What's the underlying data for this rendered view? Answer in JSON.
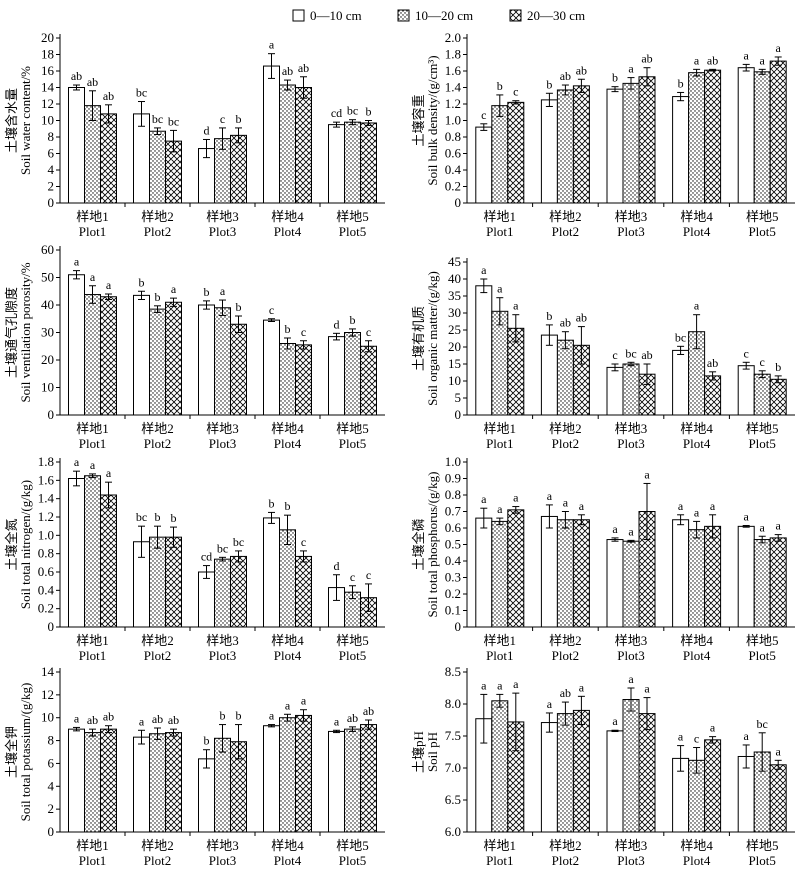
{
  "legend": [
    {
      "label": "0—10 cm",
      "pattern": "empty"
    },
    {
      "label": "10—20 cm",
      "pattern": "dots"
    },
    {
      "label": "20—30 cm",
      "pattern": "crosshatch"
    }
  ],
  "chart_data": [
    {
      "type": "bar",
      "ylabel_cn": "土壤含水量",
      "ylabel_en": "Soil water content/%",
      "ylim": [
        0,
        20
      ],
      "yticks": [
        "0",
        "2",
        "4",
        "6",
        "8",
        "10",
        "12",
        "14",
        "16",
        "18",
        "20"
      ],
      "categories_cn": [
        "样地1",
        "样地2",
        "样地3",
        "样地4",
        "样地5"
      ],
      "categories_en": [
        "Plot1",
        "Plot2",
        "Plot3",
        "Plot4",
        "Plot5"
      ],
      "series": [
        {
          "name": "0—10 cm",
          "values": [
            14.0,
            10.8,
            6.6,
            16.6,
            9.5
          ],
          "errors": [
            0.3,
            1.5,
            1.1,
            1.5,
            0.3
          ],
          "labels": [
            "ab",
            "bc",
            "d",
            "a",
            "cd"
          ]
        },
        {
          "name": "10—20 cm",
          "values": [
            11.8,
            8.7,
            7.8,
            14.3,
            9.8
          ],
          "errors": [
            1.8,
            0.4,
            1.3,
            0.6,
            0.3
          ],
          "labels": [
            "ab",
            "bc",
            "c",
            "ab",
            "bc"
          ]
        },
        {
          "name": "20—30 cm",
          "values": [
            10.8,
            7.5,
            8.2,
            14.0,
            9.7
          ],
          "errors": [
            1.1,
            1.3,
            0.9,
            1.3,
            0.3
          ],
          "labels": [
            "ab",
            "bc",
            "b",
            "ab",
            "b"
          ]
        }
      ]
    },
    {
      "type": "bar",
      "ylabel_cn": "土壤容重",
      "ylabel_en": "Soil bulk density/(g/cm³)",
      "ylim": [
        0,
        2.0
      ],
      "yticks": [
        "0",
        "0.2",
        "0.4",
        "0.6",
        "0.8",
        "1.0",
        "1.2",
        "1.4",
        "1.6",
        "1.8",
        "2.0"
      ],
      "categories_cn": [
        "样地1",
        "样地2",
        "样地3",
        "样地4",
        "样地5"
      ],
      "categories_en": [
        "Plot1",
        "Plot2",
        "Plot3",
        "Plot4",
        "Plot5"
      ],
      "series": [
        {
          "name": "0—10 cm",
          "values": [
            0.92,
            1.25,
            1.38,
            1.29,
            1.64
          ],
          "errors": [
            0.04,
            0.08,
            0.03,
            0.05,
            0.04
          ],
          "labels": [
            "c",
            "b",
            "b",
            "b",
            "a"
          ]
        },
        {
          "name": "10—20 cm",
          "values": [
            1.18,
            1.37,
            1.45,
            1.58,
            1.59
          ],
          "errors": [
            0.13,
            0.06,
            0.07,
            0.04,
            0.03
          ],
          "labels": [
            "b",
            "ab",
            "a",
            "a",
            "a"
          ]
        },
        {
          "name": "20—30 cm",
          "values": [
            1.22,
            1.42,
            1.53,
            1.61,
            1.72
          ],
          "errors": [
            0.02,
            0.08,
            0.11,
            0.01,
            0.05
          ],
          "labels": [
            "c",
            "ab",
            "ab",
            "ab",
            "a"
          ]
        }
      ]
    },
    {
      "type": "bar",
      "ylabel_cn": "土壤通气孔隙度",
      "ylabel_en": "Soil ventilation porosity/%",
      "ylim": [
        0,
        60
      ],
      "yticks": [
        "0",
        "10",
        "20",
        "30",
        "40",
        "50",
        "60"
      ],
      "categories_cn": [
        "样地1",
        "样地2",
        "样地3",
        "样地4",
        "样地5"
      ],
      "categories_en": [
        "Plot1",
        "Plot2",
        "Plot3",
        "Plot4",
        "Plot5"
      ],
      "series": [
        {
          "name": "0—10 cm",
          "values": [
            51.0,
            43.5,
            40.0,
            34.5,
            28.5
          ],
          "errors": [
            1.5,
            1.5,
            1.5,
            0.5,
            1.2
          ],
          "labels": [
            "a",
            "b",
            "b",
            "c",
            "d"
          ]
        },
        {
          "name": "10—20 cm",
          "values": [
            43.8,
            38.5,
            39.0,
            26.0,
            30.0
          ],
          "errors": [
            3.2,
            1.2,
            2.8,
            2.0,
            1.3
          ],
          "labels": [
            "a",
            "b",
            "a",
            "b",
            "b"
          ]
        },
        {
          "name": "20—30 cm",
          "values": [
            43.0,
            41.0,
            33.0,
            25.5,
            25.0
          ],
          "errors": [
            1.0,
            1.5,
            3.0,
            1.5,
            2.0
          ],
          "labels": [
            "a",
            "a",
            "b",
            "c",
            "c"
          ]
        }
      ]
    },
    {
      "type": "bar",
      "ylabel_cn": "土壤有机质",
      "ylabel_en": "Soil organic matter/(g/kg)",
      "ylim": [
        0,
        45
      ],
      "yticks": [
        "0",
        "5",
        "10",
        "15",
        "20",
        "25",
        "30",
        "35",
        "40",
        "45"
      ],
      "categories_cn": [
        "样地1",
        "样地2",
        "样地3",
        "样地4",
        "样地5"
      ],
      "categories_en": [
        "Plot1",
        "Plot2",
        "Plot3",
        "Plot4",
        "Plot5"
      ],
      "series": [
        {
          "name": "0—10 cm",
          "values": [
            38.0,
            23.5,
            14.0,
            19.0,
            14.5
          ],
          "errors": [
            2.0,
            3.0,
            1.0,
            1.2,
            1.0
          ],
          "labels": [
            "a",
            "b",
            "c",
            "bc",
            "c"
          ]
        },
        {
          "name": "10—20 cm",
          "values": [
            30.5,
            22.0,
            15.0,
            24.5,
            12.0
          ],
          "errors": [
            4.0,
            2.5,
            0.5,
            5.0,
            1.0
          ],
          "labels": [
            "a",
            "ab",
            "bc",
            "a",
            "c"
          ]
        },
        {
          "name": "20—30 cm",
          "values": [
            25.5,
            20.5,
            12.0,
            11.5,
            10.5
          ],
          "errors": [
            4.0,
            5.5,
            3.0,
            1.2,
            1.0
          ],
          "labels": [
            "a",
            "ab",
            "ab",
            "ab",
            "b"
          ]
        }
      ]
    },
    {
      "type": "bar",
      "ylabel_cn": "土壤全氮",
      "ylabel_en": "Soil total nitrogen/(g/kg)",
      "ylim": [
        0,
        1.8
      ],
      "yticks": [
        "0",
        "0.2",
        "0.4",
        "0.6",
        "0.8",
        "1.0",
        "1.2",
        "1.4",
        "1.6",
        "1.8"
      ],
      "categories_cn": [
        "样地1",
        "样地2",
        "样地3",
        "样地4",
        "样地5"
      ],
      "categories_en": [
        "Plot1",
        "Plot2",
        "Plot3",
        "Plot4",
        "Plot5"
      ],
      "series": [
        {
          "name": "0—10 cm",
          "values": [
            1.62,
            0.93,
            0.6,
            1.19,
            0.43
          ],
          "errors": [
            0.08,
            0.17,
            0.07,
            0.06,
            0.14
          ],
          "labels": [
            "a",
            "bc",
            "cd",
            "b",
            "d"
          ]
        },
        {
          "name": "10—20 cm",
          "values": [
            1.65,
            0.98,
            0.74,
            1.06,
            0.38
          ],
          "errors": [
            0.02,
            0.12,
            0.02,
            0.16,
            0.07
          ],
          "labels": [
            "a",
            "b",
            "bc",
            "b",
            "c"
          ]
        },
        {
          "name": "20—30 cm",
          "values": [
            1.44,
            0.98,
            0.77,
            0.77,
            0.32
          ],
          "errors": [
            0.14,
            0.11,
            0.06,
            0.06,
            0.15
          ],
          "labels": [
            "a",
            "b",
            "bc",
            "c",
            "c"
          ]
        }
      ]
    },
    {
      "type": "bar",
      "ylabel_cn": "土壤全磷",
      "ylabel_en": "Soil total phosphorus/(g/kg)",
      "ylim": [
        0,
        1.0
      ],
      "yticks": [
        "0",
        "0.1",
        "0.2",
        "0.3",
        "0.4",
        "0.5",
        "0.6",
        "0.7",
        "0.8",
        "0.9",
        "1.0"
      ],
      "categories_cn": [
        "样地1",
        "样地2",
        "样地3",
        "样地4",
        "样地5"
      ],
      "categories_en": [
        "Plot1",
        "Plot2",
        "Plot3",
        "Plot4",
        "Plot5"
      ],
      "series": [
        {
          "name": "0—10 cm",
          "values": [
            0.66,
            0.67,
            0.53,
            0.65,
            0.61
          ],
          "errors": [
            0.06,
            0.07,
            0.01,
            0.03,
            0.005
          ],
          "labels": [
            "a",
            "a",
            "a",
            "a",
            "a"
          ]
        },
        {
          "name": "10—20 cm",
          "values": [
            0.64,
            0.65,
            0.52,
            0.59,
            0.53
          ],
          "errors": [
            0.02,
            0.05,
            0.005,
            0.05,
            0.02
          ],
          "labels": [
            "a",
            "a",
            "a",
            "a",
            "a"
          ]
        },
        {
          "name": "20—30 cm",
          "values": [
            0.71,
            0.65,
            0.7,
            0.61,
            0.54
          ],
          "errors": [
            0.02,
            0.03,
            0.17,
            0.07,
            0.02
          ],
          "labels": [
            "a",
            "a",
            "a",
            "a",
            "a"
          ]
        }
      ]
    },
    {
      "type": "bar",
      "ylabel_cn": "土壤全钾",
      "ylabel_en": "Soil total potassium/(g/kg)",
      "ylim": [
        0,
        14
      ],
      "yticks": [
        "0",
        "2",
        "4",
        "6",
        "8",
        "10",
        "12",
        "14"
      ],
      "categories_cn": [
        "样地1",
        "样地2",
        "样地3",
        "样地4",
        "样地5"
      ],
      "categories_en": [
        "Plot1",
        "Plot2",
        "Plot3",
        "Plot4",
        "Plot5"
      ],
      "series": [
        {
          "name": "0—10 cm",
          "values": [
            9.0,
            8.3,
            6.4,
            9.3,
            8.8
          ],
          "errors": [
            0.15,
            0.6,
            0.8,
            0.1,
            0.1
          ],
          "labels": [
            "a",
            "a",
            "b",
            "a",
            "a"
          ]
        },
        {
          "name": "10—20 cm",
          "values": [
            8.7,
            8.6,
            8.2,
            10.0,
            9.0
          ],
          "errors": [
            0.3,
            0.5,
            1.2,
            0.3,
            0.2
          ],
          "labels": [
            "ab",
            "ab",
            "b",
            "a",
            "ab"
          ]
        },
        {
          "name": "20—30 cm",
          "values": [
            9.0,
            8.7,
            7.9,
            10.2,
            9.4
          ],
          "errors": [
            0.3,
            0.3,
            1.5,
            0.5,
            0.4
          ],
          "labels": [
            "ab",
            "ab",
            "b",
            "a",
            "ab"
          ]
        }
      ]
    },
    {
      "type": "bar",
      "ylabel_cn": "土壤pH",
      "ylabel_en": "Soil pH",
      "ylim": [
        6.0,
        8.5
      ],
      "yticks": [
        "6.0",
        "6.5",
        "7.0",
        "7.5",
        "8.0",
        "8.5"
      ],
      "categories_cn": [
        "样地1",
        "样地2",
        "样地3",
        "样地4",
        "样地5"
      ],
      "categories_en": [
        "Plot1",
        "Plot2",
        "Plot3",
        "Plot4",
        "Plot5"
      ],
      "series": [
        {
          "name": "0—10 cm",
          "values": [
            7.77,
            7.71,
            7.58,
            7.15,
            7.18
          ],
          "errors": [
            0.38,
            0.15,
            0.01,
            0.2,
            0.18
          ],
          "labels": [
            "a",
            "a",
            "a",
            "a",
            "a"
          ]
        },
        {
          "name": "10—20 cm",
          "values": [
            8.05,
            7.85,
            8.07,
            7.12,
            7.25
          ],
          "errors": [
            0.1,
            0.18,
            0.18,
            0.2,
            0.3
          ],
          "labels": [
            "a",
            "ab",
            "a",
            "c",
            "bc"
          ]
        },
        {
          "name": "20—30 cm",
          "values": [
            7.72,
            7.9,
            7.85,
            7.44,
            7.05
          ],
          "errors": [
            0.45,
            0.22,
            0.25,
            0.05,
            0.07
          ],
          "labels": [
            "a",
            "a",
            "a",
            "a",
            "a"
          ]
        }
      ]
    }
  ]
}
